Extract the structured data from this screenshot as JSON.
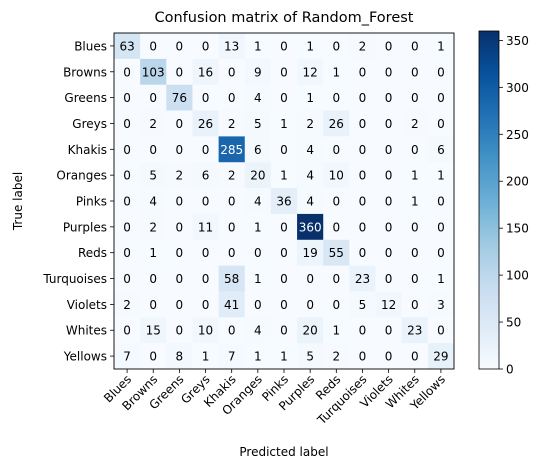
{
  "chart_data": {
    "type": "heatmap",
    "title": "Confusion matrix of Random_Forest",
    "xlabel": "Predicted label",
    "ylabel": "True label",
    "labels": [
      "Blues",
      "Browns",
      "Greens",
      "Greys",
      "Khakis",
      "Oranges",
      "Pinks",
      "Purples",
      "Reds",
      "Turquoises",
      "Violets",
      "Whites",
      "Yellows"
    ],
    "matrix": [
      [
        63,
        0,
        0,
        0,
        13,
        1,
        0,
        1,
        0,
        2,
        0,
        0,
        1
      ],
      [
        0,
        103,
        0,
        16,
        0,
        9,
        0,
        12,
        1,
        0,
        0,
        0,
        0
      ],
      [
        0,
        0,
        76,
        0,
        0,
        4,
        0,
        1,
        0,
        0,
        0,
        0,
        0
      ],
      [
        0,
        2,
        0,
        26,
        2,
        5,
        1,
        2,
        26,
        0,
        0,
        2,
        0
      ],
      [
        0,
        0,
        0,
        0,
        285,
        6,
        0,
        4,
        0,
        0,
        0,
        0,
        6
      ],
      [
        0,
        5,
        2,
        6,
        2,
        20,
        1,
        4,
        10,
        0,
        0,
        1,
        1
      ],
      [
        0,
        4,
        0,
        0,
        0,
        4,
        36,
        4,
        0,
        0,
        0,
        1,
        0
      ],
      [
        0,
        2,
        0,
        11,
        0,
        1,
        0,
        360,
        0,
        0,
        0,
        0,
        0
      ],
      [
        0,
        1,
        0,
        0,
        0,
        0,
        0,
        19,
        55,
        0,
        0,
        0,
        0
      ],
      [
        0,
        0,
        0,
        0,
        58,
        1,
        0,
        0,
        0,
        23,
        0,
        0,
        1
      ],
      [
        2,
        0,
        0,
        0,
        41,
        0,
        0,
        0,
        0,
        5,
        12,
        0,
        3
      ],
      [
        0,
        15,
        0,
        10,
        0,
        4,
        0,
        20,
        1,
        0,
        0,
        23,
        0
      ],
      [
        7,
        0,
        8,
        1,
        7,
        1,
        1,
        5,
        2,
        0,
        0,
        0,
        29
      ]
    ],
    "color_scale": {
      "colormap": "Blues",
      "min": 0,
      "max": 360,
      "ticks": [
        0,
        50,
        100,
        150,
        200,
        250,
        300,
        350
      ],
      "tick_labels": [
        "0",
        "50",
        "100",
        "150",
        "200",
        "250",
        "300",
        "350"
      ]
    }
  }
}
